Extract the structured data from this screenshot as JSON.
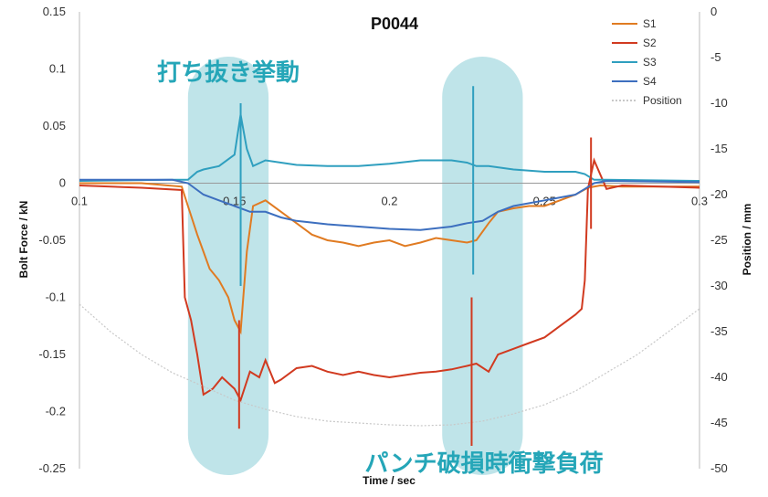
{
  "chart_data": {
    "type": "line",
    "title": "P0044",
    "xlabel": "Time / sec",
    "ylabel": "Bolt Force / kN",
    "y2label": "Position / mm",
    "xlim": [
      0.1,
      0.3
    ],
    "ylim": [
      -0.25,
      0.15
    ],
    "y2lim": [
      -50,
      0
    ],
    "x_ticks": [
      "0.1",
      "0.15",
      "0.2",
      "0.25",
      "0.3"
    ],
    "y_ticks": [
      "0.15",
      "0.1",
      "0.05",
      "0",
      "-0.05",
      "-0.1",
      "-0.15",
      "-0.2",
      "-0.25"
    ],
    "y2_ticks": [
      "0",
      "-5",
      "-10",
      "-15",
      "-20",
      "-25",
      "-30",
      "-35",
      "-40",
      "-45",
      "-50"
    ],
    "legend_position": "top-right",
    "grid": false,
    "series": [
      {
        "name": "S1",
        "color": "#e07b22",
        "axis": "left",
        "points": [
          [
            0.1,
            0.0
          ],
          [
            0.12,
            0.0
          ],
          [
            0.133,
            -0.003
          ],
          [
            0.135,
            -0.02
          ],
          [
            0.138,
            -0.045
          ],
          [
            0.14,
            -0.06
          ],
          [
            0.142,
            -0.075
          ],
          [
            0.145,
            -0.085
          ],
          [
            0.148,
            -0.1
          ],
          [
            0.15,
            -0.12
          ],
          [
            0.152,
            -0.13
          ],
          [
            0.154,
            -0.06
          ],
          [
            0.156,
            -0.02
          ],
          [
            0.16,
            -0.015
          ],
          [
            0.165,
            -0.025
          ],
          [
            0.17,
            -0.035
          ],
          [
            0.175,
            -0.045
          ],
          [
            0.18,
            -0.05
          ],
          [
            0.185,
            -0.052
          ],
          [
            0.19,
            -0.055
          ],
          [
            0.195,
            -0.052
          ],
          [
            0.2,
            -0.05
          ],
          [
            0.205,
            -0.055
          ],
          [
            0.21,
            -0.052
          ],
          [
            0.215,
            -0.048
          ],
          [
            0.22,
            -0.05
          ],
          [
            0.225,
            -0.052
          ],
          [
            0.228,
            -0.05
          ],
          [
            0.232,
            -0.035
          ],
          [
            0.235,
            -0.025
          ],
          [
            0.24,
            -0.022
          ],
          [
            0.245,
            -0.02
          ],
          [
            0.25,
            -0.02
          ],
          [
            0.255,
            -0.015
          ],
          [
            0.26,
            -0.01
          ],
          [
            0.264,
            -0.004
          ],
          [
            0.268,
            -0.002
          ],
          [
            0.275,
            -0.003
          ],
          [
            0.3,
            -0.003
          ]
        ]
      },
      {
        "name": "S2",
        "color": "#d13a20",
        "axis": "left",
        "points": [
          [
            0.1,
            -0.002
          ],
          [
            0.12,
            -0.004
          ],
          [
            0.133,
            -0.006
          ],
          [
            0.134,
            -0.1
          ],
          [
            0.136,
            -0.12
          ],
          [
            0.138,
            -0.15
          ],
          [
            0.14,
            -0.185
          ],
          [
            0.143,
            -0.18
          ],
          [
            0.146,
            -0.17
          ],
          [
            0.15,
            -0.18
          ],
          [
            0.152,
            -0.19
          ],
          [
            0.155,
            -0.165
          ],
          [
            0.158,
            -0.17
          ],
          [
            0.16,
            -0.155
          ],
          [
            0.163,
            -0.175
          ],
          [
            0.165,
            -0.172
          ],
          [
            0.17,
            -0.162
          ],
          [
            0.175,
            -0.16
          ],
          [
            0.18,
            -0.165
          ],
          [
            0.185,
            -0.168
          ],
          [
            0.19,
            -0.165
          ],
          [
            0.195,
            -0.168
          ],
          [
            0.2,
            -0.17
          ],
          [
            0.205,
            -0.168
          ],
          [
            0.21,
            -0.166
          ],
          [
            0.215,
            -0.165
          ],
          [
            0.22,
            -0.163
          ],
          [
            0.225,
            -0.16
          ],
          [
            0.228,
            -0.158
          ],
          [
            0.232,
            -0.165
          ],
          [
            0.235,
            -0.15
          ],
          [
            0.24,
            -0.145
          ],
          [
            0.245,
            -0.14
          ],
          [
            0.25,
            -0.135
          ],
          [
            0.255,
            -0.125
          ],
          [
            0.26,
            -0.115
          ],
          [
            0.262,
            -0.11
          ],
          [
            0.263,
            -0.085
          ],
          [
            0.264,
            -0.005
          ],
          [
            0.266,
            0.02
          ],
          [
            0.27,
            -0.005
          ],
          [
            0.275,
            -0.002
          ],
          [
            0.3,
            -0.004
          ]
        ]
      },
      {
        "name": "S3",
        "color": "#2f9fbf",
        "axis": "left",
        "points": [
          [
            0.1,
            0.002
          ],
          [
            0.13,
            0.003
          ],
          [
            0.135,
            0.003
          ],
          [
            0.138,
            0.01
          ],
          [
            0.14,
            0.012
          ],
          [
            0.145,
            0.015
          ],
          [
            0.15,
            0.025
          ],
          [
            0.152,
            0.06
          ],
          [
            0.154,
            0.03
          ],
          [
            0.156,
            0.015
          ],
          [
            0.16,
            0.02
          ],
          [
            0.17,
            0.016
          ],
          [
            0.18,
            0.015
          ],
          [
            0.19,
            0.015
          ],
          [
            0.2,
            0.017
          ],
          [
            0.21,
            0.02
          ],
          [
            0.22,
            0.02
          ],
          [
            0.225,
            0.018
          ],
          [
            0.228,
            0.015
          ],
          [
            0.232,
            0.015
          ],
          [
            0.24,
            0.012
          ],
          [
            0.25,
            0.01
          ],
          [
            0.26,
            0.01
          ],
          [
            0.263,
            0.008
          ],
          [
            0.266,
            0.003
          ],
          [
            0.27,
            0.003
          ],
          [
            0.3,
            0.002
          ]
        ]
      },
      {
        "name": "S4",
        "color": "#3d6fbf",
        "axis": "left",
        "points": [
          [
            0.1,
            0.003
          ],
          [
            0.13,
            0.003
          ],
          [
            0.135,
            0.0
          ],
          [
            0.14,
            -0.01
          ],
          [
            0.145,
            -0.015
          ],
          [
            0.15,
            -0.02
          ],
          [
            0.155,
            -0.025
          ],
          [
            0.16,
            -0.025
          ],
          [
            0.165,
            -0.03
          ],
          [
            0.17,
            -0.033
          ],
          [
            0.18,
            -0.036
          ],
          [
            0.19,
            -0.038
          ],
          [
            0.2,
            -0.04
          ],
          [
            0.21,
            -0.041
          ],
          [
            0.22,
            -0.038
          ],
          [
            0.225,
            -0.035
          ],
          [
            0.23,
            -0.033
          ],
          [
            0.235,
            -0.025
          ],
          [
            0.24,
            -0.02
          ],
          [
            0.25,
            -0.015
          ],
          [
            0.26,
            -0.01
          ],
          [
            0.263,
            -0.005
          ],
          [
            0.266,
            0.0
          ],
          [
            0.27,
            0.002
          ],
          [
            0.3,
            0.001
          ]
        ]
      },
      {
        "name": "Position",
        "color": "#c8c8c8",
        "axis": "right",
        "points": [
          [
            0.1,
            -32
          ],
          [
            0.11,
            -35
          ],
          [
            0.12,
            -37.5
          ],
          [
            0.13,
            -39.5
          ],
          [
            0.14,
            -41
          ],
          [
            0.15,
            -42.5
          ],
          [
            0.16,
            -43.5
          ],
          [
            0.17,
            -44.3
          ],
          [
            0.18,
            -44.8
          ],
          [
            0.19,
            -45
          ],
          [
            0.2,
            -45.2
          ],
          [
            0.21,
            -45.3
          ],
          [
            0.22,
            -45.2
          ],
          [
            0.23,
            -44.8
          ],
          [
            0.24,
            -44
          ],
          [
            0.25,
            -43
          ],
          [
            0.26,
            -41.5
          ],
          [
            0.27,
            -39.5
          ],
          [
            0.28,
            -37.5
          ],
          [
            0.29,
            -35
          ],
          [
            0.3,
            -32.5
          ]
        ]
      }
    ],
    "spikes": [
      {
        "series": "S3",
        "x": 0.152,
        "y_min": -0.09,
        "y_max": 0.07
      },
      {
        "series": "S2",
        "x": 0.1515,
        "y_min": -0.215,
        "y_max": -0.12
      },
      {
        "series": "S3",
        "x": 0.227,
        "y_min": -0.08,
        "y_max": 0.085
      },
      {
        "series": "S2",
        "x": 0.2265,
        "y_min": -0.23,
        "y_max": -0.1
      },
      {
        "series": "S2",
        "x": 0.265,
        "y_min": -0.04,
        "y_max": 0.04
      }
    ]
  },
  "annotations": {
    "regions": [
      {
        "label": "打ち抜き挙動",
        "x_start": 0.135,
        "x_end": 0.161,
        "color": "#a9dbe2"
      },
      {
        "label": "パンチ破損時衝撃負荷",
        "x_start": 0.217,
        "x_end": 0.243,
        "color": "#a9dbe2"
      }
    ],
    "text_color": "#25a6b8"
  }
}
